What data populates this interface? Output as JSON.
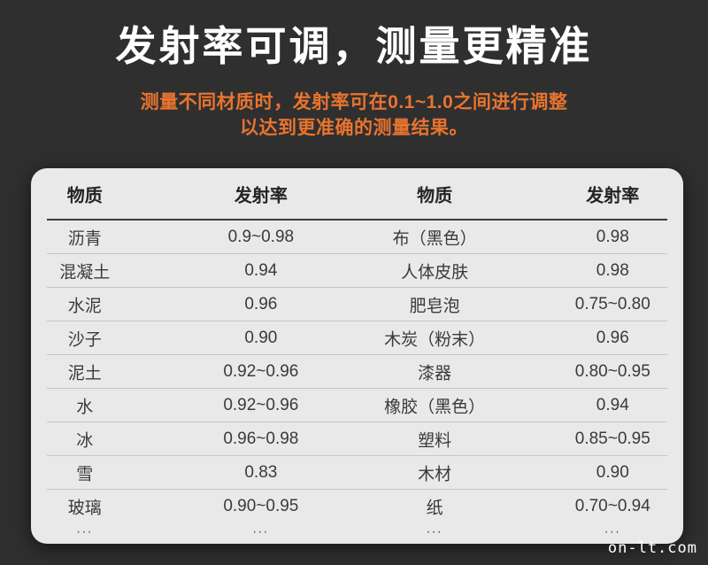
{
  "page": {
    "background_color": "#2f2f30",
    "watermark": "on-lt.com"
  },
  "header": {
    "title": "发射率可调，测量更精准",
    "subtitle_line1": "测量不同材质时，发射率可在0.1~1.0之间进行调整",
    "subtitle_line2": "以达到更准确的测量结果。",
    "title_color": "#ffffff",
    "subtitle_color": "#e9742e"
  },
  "table": {
    "background_color": "#e9e9e9",
    "columns": [
      "物质",
      "发射率",
      "物质",
      "发射率"
    ],
    "rows": [
      [
        "沥青",
        "0.9~0.98",
        "布（黑色）",
        "0.98"
      ],
      [
        "混凝土",
        "0.94",
        "人体皮肤",
        "0.98"
      ],
      [
        "水泥",
        "0.96",
        "肥皂泡",
        "0.75~0.80"
      ],
      [
        "沙子",
        "0.90",
        "木炭（粉末）",
        "0.96"
      ],
      [
        "泥土",
        "0.92~0.96",
        "漆器",
        "0.80~0.95"
      ],
      [
        "水",
        "0.92~0.96",
        "橡胶（黑色）",
        "0.94"
      ],
      [
        "冰",
        "0.96~0.98",
        "塑料",
        "0.85~0.95"
      ],
      [
        "雪",
        "0.83",
        "木材",
        "0.90"
      ],
      [
        "玻璃",
        "0.90~0.95",
        "纸",
        "0.70~0.94"
      ],
      [
        "...",
        "...",
        "...",
        "..."
      ]
    ]
  }
}
